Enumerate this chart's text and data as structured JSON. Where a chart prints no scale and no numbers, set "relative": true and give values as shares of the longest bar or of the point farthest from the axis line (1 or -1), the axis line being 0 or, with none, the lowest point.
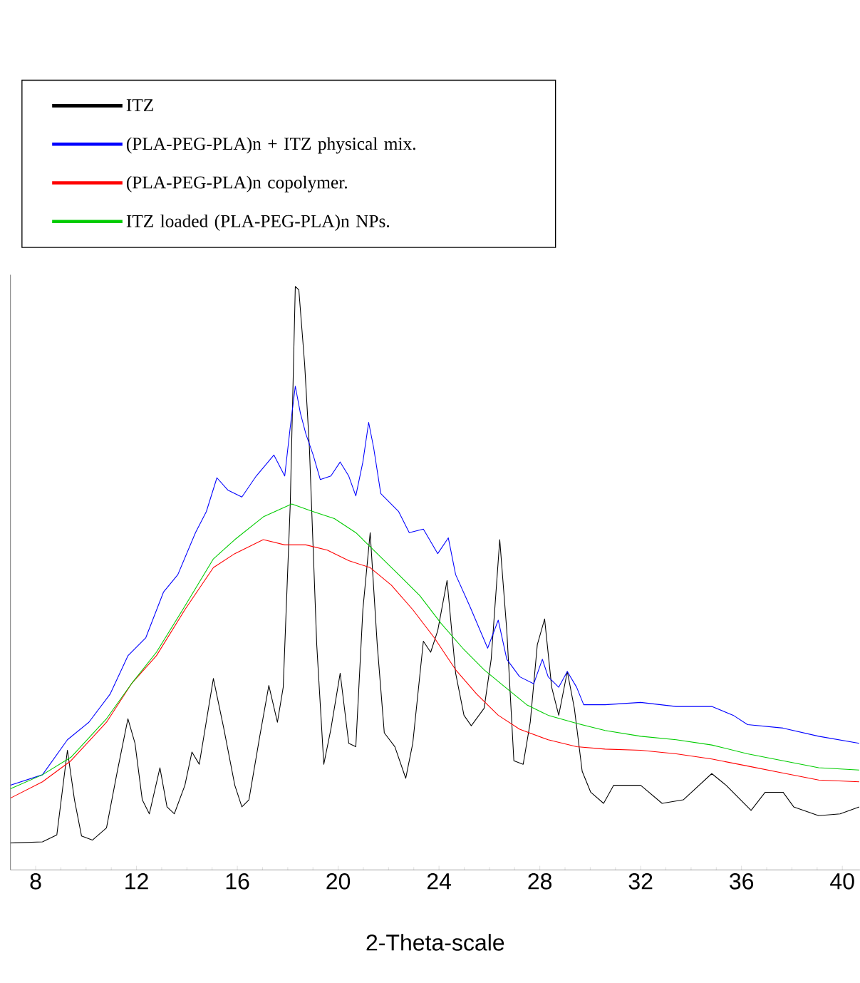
{
  "chart_data": {
    "type": "line",
    "relative": true,
    "xlabel": "2-Theta-scale",
    "xlim": [
      7,
      40.7
    ],
    "xticks": [
      8,
      12,
      16,
      20,
      24,
      28,
      32,
      36,
      40
    ],
    "legend": "top",
    "series": [
      {
        "name": "ITZ",
        "color": "#000000",
        "x": [
          7.0,
          8.27,
          8.84,
          9.26,
          9.54,
          9.82,
          10.25,
          10.81,
          11.24,
          11.66,
          11.94,
          12.23,
          12.51,
          12.93,
          13.21,
          13.5,
          13.92,
          14.2,
          14.49,
          15.05,
          15.47,
          15.9,
          16.18,
          16.46,
          16.89,
          17.25,
          17.59,
          17.82,
          18.1,
          18.3,
          18.44,
          18.67,
          18.86,
          19.15,
          19.43,
          19.71,
          20.08,
          20.42,
          20.7,
          20.98,
          21.27,
          21.55,
          21.83,
          22.25,
          22.68,
          22.96,
          23.38,
          23.67,
          23.95,
          24.32,
          24.66,
          24.99,
          25.28,
          25.79,
          26.07,
          26.41,
          26.69,
          26.97,
          27.34,
          27.62,
          27.9,
          28.19,
          28.47,
          28.75,
          29.09,
          29.37,
          29.68,
          30.02,
          30.53,
          30.93,
          32.0,
          32.85,
          33.69,
          34.82,
          35.39,
          36.38,
          36.94,
          37.65,
          38.07,
          39.06,
          39.91,
          40.67
        ],
        "values": [
          0.046,
          0.048,
          0.06,
          0.205,
          0.12,
          0.058,
          0.051,
          0.072,
          0.169,
          0.259,
          0.217,
          0.12,
          0.096,
          0.175,
          0.108,
          0.096,
          0.145,
          0.202,
          0.181,
          0.328,
          0.241,
          0.145,
          0.108,
          0.12,
          0.229,
          0.316,
          0.253,
          0.313,
          0.627,
          1.0,
          0.994,
          0.867,
          0.723,
          0.386,
          0.181,
          0.241,
          0.337,
          0.217,
          0.211,
          0.446,
          0.578,
          0.386,
          0.235,
          0.211,
          0.157,
          0.217,
          0.392,
          0.373,
          0.41,
          0.496,
          0.337,
          0.265,
          0.247,
          0.277,
          0.361,
          0.566,
          0.41,
          0.187,
          0.181,
          0.253,
          0.386,
          0.43,
          0.313,
          0.265,
          0.34,
          0.277,
          0.169,
          0.133,
          0.114,
          0.145,
          0.145,
          0.114,
          0.12,
          0.165,
          0.145,
          0.102,
          0.133,
          0.133,
          0.108,
          0.093,
          0.096,
          0.108
        ]
      },
      {
        "name": "(PLA-PEG-PLA)n + ITZ physical mix.",
        "color": "#0000ff",
        "x": [
          7.0,
          8.27,
          9.26,
          10.11,
          10.95,
          11.66,
          12.37,
          13.07,
          13.64,
          14.34,
          14.77,
          15.19,
          15.62,
          16.18,
          16.75,
          17.45,
          17.88,
          18.1,
          18.3,
          18.5,
          18.72,
          19.01,
          19.29,
          19.71,
          20.08,
          20.42,
          20.7,
          20.98,
          21.21,
          21.41,
          21.69,
          22.4,
          22.82,
          23.38,
          23.95,
          24.37,
          24.66,
          25.22,
          25.93,
          26.35,
          26.69,
          27.2,
          27.76,
          28.1,
          28.33,
          28.75,
          29.09,
          29.46,
          29.74,
          30.59,
          32.0,
          33.41,
          34.82,
          35.67,
          36.24,
          37.65,
          39.06,
          40.67
        ],
        "values": [
          0.145,
          0.163,
          0.223,
          0.253,
          0.301,
          0.367,
          0.398,
          0.476,
          0.506,
          0.578,
          0.614,
          0.672,
          0.651,
          0.639,
          0.675,
          0.711,
          0.675,
          0.759,
          0.829,
          0.783,
          0.747,
          0.711,
          0.669,
          0.675,
          0.699,
          0.675,
          0.641,
          0.699,
          0.767,
          0.723,
          0.645,
          0.614,
          0.578,
          0.584,
          0.542,
          0.569,
          0.506,
          0.452,
          0.38,
          0.428,
          0.361,
          0.331,
          0.319,
          0.361,
          0.331,
          0.313,
          0.34,
          0.313,
          0.283,
          0.283,
          0.287,
          0.28,
          0.28,
          0.265,
          0.249,
          0.243,
          0.229,
          0.217
        ]
      },
      {
        "name": "(PLA-PEG-PLA)n copolymer.",
        "color": "#ff0000",
        "x": [
          7.0,
          8.27,
          9.4,
          10.81,
          11.8,
          12.79,
          13.92,
          15.05,
          15.9,
          17.03,
          17.88,
          18.72,
          19.57,
          20.42,
          21.27,
          22.11,
          22.96,
          23.81,
          24.66,
          25.5,
          26.35,
          27.2,
          28.33,
          29.46,
          30.59,
          32.0,
          33.41,
          34.82,
          36.24,
          37.65,
          39.06,
          40.67
        ],
        "values": [
          0.123,
          0.151,
          0.187,
          0.253,
          0.319,
          0.367,
          0.446,
          0.518,
          0.542,
          0.566,
          0.557,
          0.557,
          0.548,
          0.53,
          0.518,
          0.488,
          0.446,
          0.398,
          0.343,
          0.301,
          0.265,
          0.241,
          0.223,
          0.211,
          0.207,
          0.205,
          0.199,
          0.19,
          0.178,
          0.166,
          0.154,
          0.151
        ]
      },
      {
        "name": "ITZ loaded (PLA-PEG-PLA)n NPs.",
        "color": "#00cc00",
        "x": [
          7.0,
          8.27,
          9.4,
          10.81,
          11.8,
          12.79,
          13.92,
          15.05,
          15.9,
          17.03,
          18.16,
          19.01,
          19.85,
          20.7,
          21.55,
          22.4,
          23.24,
          24.09,
          24.94,
          25.79,
          26.63,
          27.48,
          28.33,
          29.46,
          30.59,
          32.0,
          33.41,
          34.82,
          36.24,
          37.65,
          39.06,
          40.67
        ],
        "values": [
          0.139,
          0.163,
          0.193,
          0.259,
          0.319,
          0.373,
          0.452,
          0.533,
          0.566,
          0.605,
          0.627,
          0.614,
          0.602,
          0.578,
          0.542,
          0.506,
          0.47,
          0.422,
          0.38,
          0.343,
          0.313,
          0.283,
          0.265,
          0.251,
          0.239,
          0.229,
          0.223,
          0.214,
          0.199,
          0.187,
          0.175,
          0.171
        ]
      }
    ]
  }
}
